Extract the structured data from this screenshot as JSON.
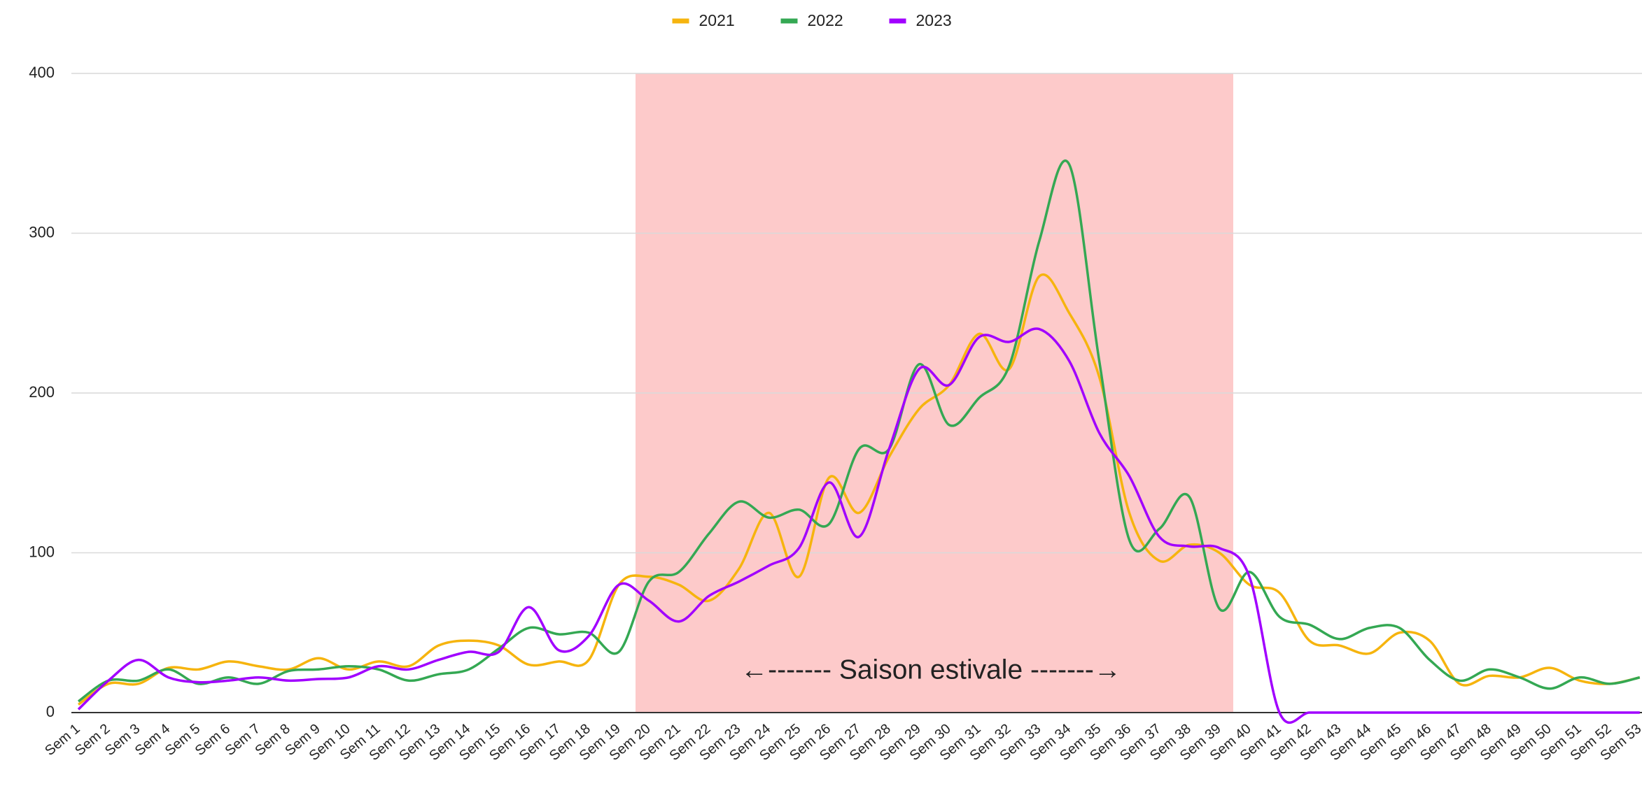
{
  "chart_data": {
    "type": "line",
    "annotation": "←------- Saison estivale -------→",
    "categories": [
      "Sem 1",
      "Sem 2",
      "Sem 3",
      "Sem 4",
      "Sem 5",
      "Sem 6",
      "Sem 7",
      "Sem 8",
      "Sem 9",
      "Sem 10",
      "Sem 11",
      "Sem 12",
      "Sem 13",
      "Sem 14",
      "Sem 15",
      "Sem 16",
      "Sem 17",
      "Sem 18",
      "Sem 19",
      "Sem 20",
      "Sem 21",
      "Sem 22",
      "Sem 23",
      "Sem 24",
      "Sem 25",
      "Sem 26",
      "Sem 27",
      "Sem 28",
      "Sem 29",
      "Sem 30",
      "Sem 31",
      "Sem 32",
      "Sem 33",
      "Sem 34",
      "Sem 35",
      "Sem 36",
      "Sem 37",
      "Sem 38",
      "Sem 39",
      "Sem 40",
      "Sem 41",
      "Sem 42",
      "Sem 43",
      "Sem 44",
      "Sem 45",
      "Sem 46",
      "Sem 47",
      "Sem 48",
      "Sem 49",
      "Sem 50",
      "Sem 51",
      "Sem 52",
      "Sem 53"
    ],
    "series": [
      {
        "name": "2021",
        "color": "#f6b40e",
        "values": [
          5,
          18,
          18,
          28,
          27,
          32,
          29,
          27,
          34,
          27,
          32,
          29,
          42,
          45,
          42,
          30,
          32,
          33,
          80,
          85,
          80,
          70,
          90,
          125,
          85,
          147,
          125,
          160,
          190,
          205,
          237,
          215,
          273,
          250,
          210,
          125,
          95,
          105,
          100,
          80,
          75,
          45,
          42,
          37,
          50,
          45,
          18,
          23,
          22,
          28,
          20,
          18,
          22
        ]
      },
      {
        "name": "2022",
        "color": "#34a853",
        "values": [
          7,
          20,
          20,
          27,
          18,
          22,
          18,
          26,
          27,
          29,
          27,
          20,
          24,
          27,
          40,
          53,
          49,
          50,
          38,
          82,
          88,
          112,
          132,
          122,
          127,
          118,
          165,
          165,
          218,
          180,
          197,
          217,
          295,
          343,
          220,
          108,
          115,
          135,
          65,
          88,
          60,
          55,
          46,
          53,
          53,
          33,
          20,
          27,
          22,
          15,
          22,
          18,
          22
        ]
      },
      {
        "name": "2023",
        "color": "#a100ff",
        "values": [
          2,
          20,
          33,
          22,
          19,
          20,
          22,
          20,
          21,
          22,
          29,
          27,
          33,
          38,
          38,
          66,
          39,
          48,
          80,
          70,
          57,
          73,
          82,
          92,
          103,
          144,
          110,
          165,
          215,
          205,
          235,
          232,
          240,
          220,
          175,
          148,
          110,
          104,
          103,
          85,
          0,
          0,
          0,
          0,
          0,
          0,
          0,
          0,
          0,
          0,
          0,
          0,
          0
        ]
      }
    ],
    "ylim": [
      0,
      400
    ],
    "yticks": [
      0,
      100,
      200,
      300,
      400
    ],
    "grid": true,
    "legend": "top"
  }
}
